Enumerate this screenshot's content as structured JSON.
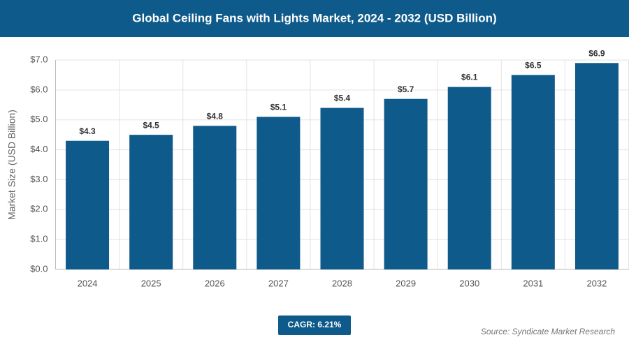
{
  "chart_data": {
    "type": "bar",
    "title": "Global Ceiling Fans with Lights Market, 2024 - 2032 (USD Billion)",
    "y_label": "Market Size (USD Billion)",
    "categories": [
      "2024",
      "2025",
      "2026",
      "2027",
      "2028",
      "2029",
      "2030",
      "2031",
      "2032"
    ],
    "values": [
      4.3,
      4.5,
      4.8,
      5.1,
      5.4,
      5.7,
      6.1,
      6.5,
      6.9
    ],
    "value_labels": [
      "$4.3",
      "$4.5",
      "$4.8",
      "$5.1",
      "$5.4",
      "$5.7",
      "$6.1",
      "$6.5",
      "$6.9"
    ],
    "color": "#0e5a8a",
    "ylim": [
      0,
      7
    ],
    "yticks": [
      {
        "value": 0,
        "label": "$0.0"
      },
      {
        "value": 1,
        "label": "$1.0"
      },
      {
        "value": 2,
        "label": "$2.0"
      },
      {
        "value": 3,
        "label": "$3.0"
      },
      {
        "value": 4,
        "label": "$4.0"
      },
      {
        "value": 5,
        "label": "$5.0"
      },
      {
        "value": 6,
        "label": "$6.0"
      },
      {
        "value": 7,
        "label": "$7.0"
      }
    ],
    "grid": true,
    "cagr": "CAGR: 6.21%",
    "source": "Source: Syndicate Market Research"
  }
}
